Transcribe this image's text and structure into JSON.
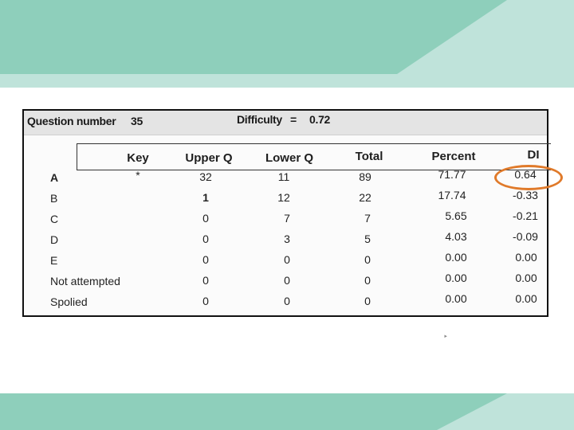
{
  "colors": {
    "band_dark": "#8ecfbb",
    "band_light": "#bfe3da",
    "highlight": "#e07a2a"
  },
  "header": {
    "question_label": "Question number",
    "question_number": "35",
    "difficulty_label": "Difficulty",
    "difficulty_eq": "=",
    "difficulty_value": "0.72"
  },
  "table": {
    "columns": [
      "Key",
      "Upper Q",
      "Lower Q",
      "Total",
      "Percent",
      "DI"
    ],
    "rows": [
      {
        "label": "A",
        "key": "*",
        "upper": "32",
        "lower": "11",
        "total": "89",
        "percent": "71.77",
        "di": "0.64"
      },
      {
        "label": "B",
        "key": "",
        "upper": "1",
        "lower": "12",
        "total": "22",
        "percent": "17.74",
        "di": "-0.33"
      },
      {
        "label": "C",
        "key": "",
        "upper": "0",
        "lower": "7",
        "total": "7",
        "percent": "5.65",
        "di": "-0.21"
      },
      {
        "label": "D",
        "key": "",
        "upper": "0",
        "lower": "3",
        "total": "5",
        "percent": "4.03",
        "di": "-0.09"
      },
      {
        "label": "E",
        "key": "",
        "upper": "0",
        "lower": "0",
        "total": "0",
        "percent": "0.00",
        "di": "0.00"
      },
      {
        "label": "Not attempted",
        "key": "",
        "upper": "0",
        "lower": "0",
        "total": "0",
        "percent": "0.00",
        "di": "0.00"
      },
      {
        "label": "Spolied",
        "key": "",
        "upper": "0",
        "lower": "0",
        "total": "0",
        "percent": "0.00",
        "di": "0.00"
      }
    ]
  }
}
